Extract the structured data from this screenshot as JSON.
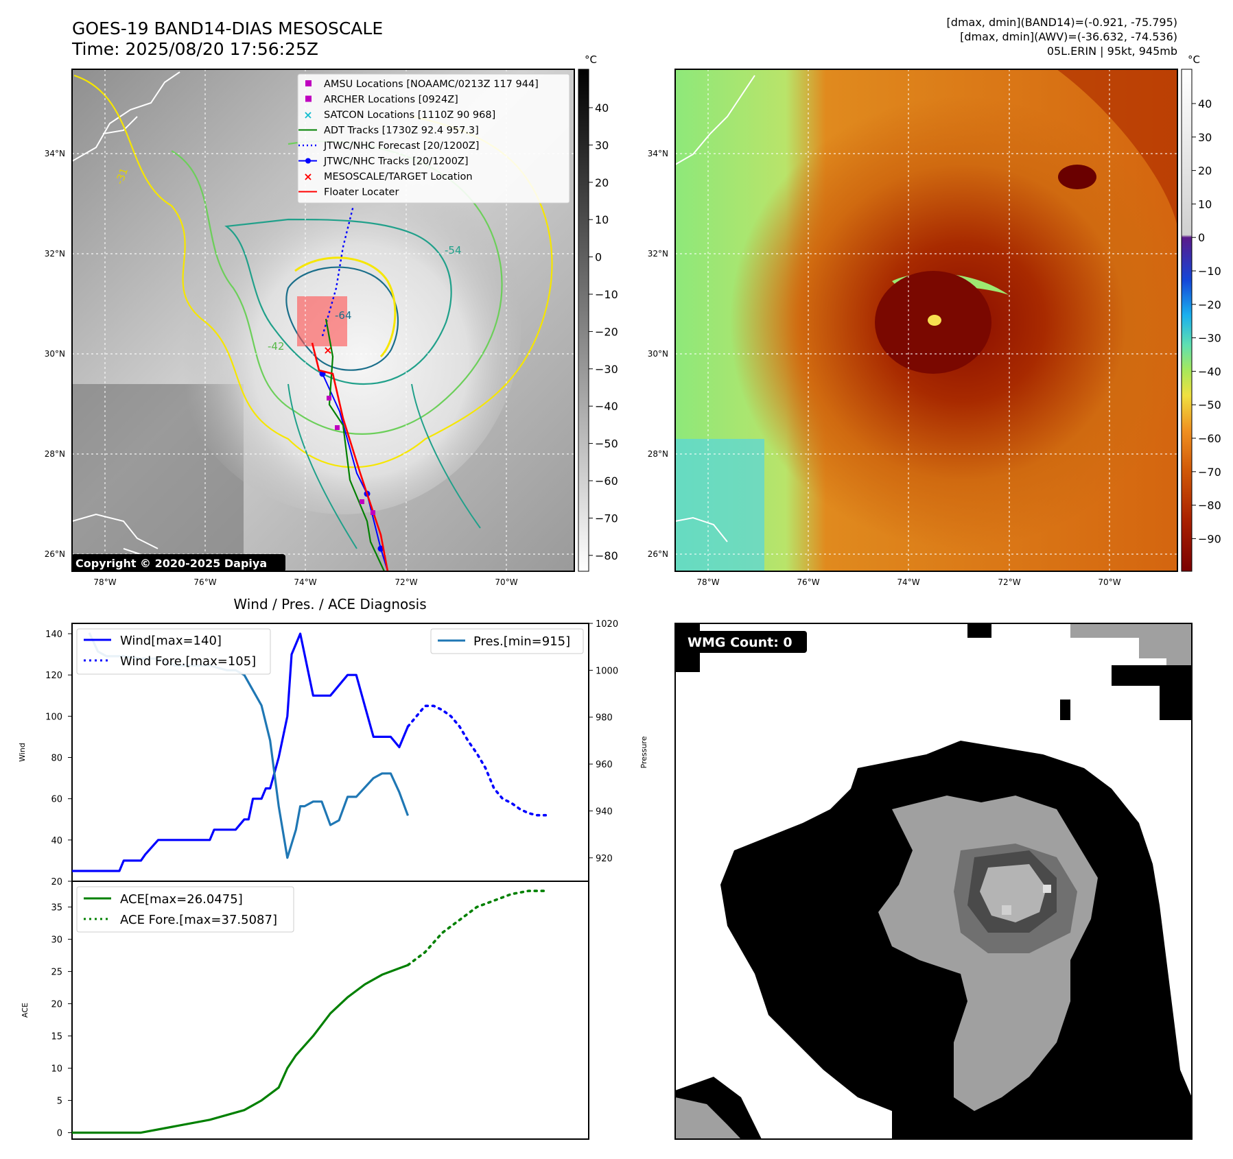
{
  "header": {
    "title_line1": "GOES-19 BAND14-DIAS MESOSCALE",
    "title_line2": "Time: 2025/08/20 17:56:25Z",
    "right_line1": "[dmax, dmin](BAND14)=(-0.921, -75.795)",
    "right_line2": "[dmax, dmin](AWV)=(-36.632, -74.536)",
    "right_line3": "05L.ERIN | 95kt, 945mb"
  },
  "maps": {
    "lat_labels": [
      "34°N",
      "32°N",
      "30°N",
      "28°N",
      "26°N"
    ],
    "lon_labels": [
      "78°W",
      "76°W",
      "74°W",
      "72°W",
      "70°W"
    ],
    "copyright": "Copyright © 2020-2025 Dapiya",
    "colorbar_unit": "°C",
    "left_colorbar_ticks": [
      "40",
      "30",
      "20",
      "10",
      "0",
      "−10",
      "−20",
      "−30",
      "−40",
      "−50",
      "−60",
      "−70",
      "−80"
    ],
    "right_colorbar_ticks": [
      "40",
      "30",
      "20",
      "10",
      "0",
      "−10",
      "−20",
      "−30",
      "−40",
      "−50",
      "−60",
      "−70",
      "−80",
      "−90"
    ],
    "contour_labels": [
      "-31",
      "-42",
      "-54",
      "-64"
    ],
    "legend": [
      {
        "label": "AMSU Locations [NOAAMC/0213Z 117 944]",
        "color": "#bf00bf",
        "marker": "square"
      },
      {
        "label": "ARCHER Locations [0924Z]",
        "color": "#bf00bf",
        "marker": "square"
      },
      {
        "label": "SATCON Locations [1110Z 90 968]",
        "color": "#17becf",
        "marker": "x"
      },
      {
        "label": "ADT Tracks [1730Z 92.4 957.3]",
        "color": "#008000",
        "marker": "line"
      },
      {
        "label": "JTWC/NHC Forecast [20/1200Z]",
        "color": "#0000ff",
        "marker": "dotted"
      },
      {
        "label": "JTWC/NHC Tracks [20/1200Z]",
        "color": "#0000ff",
        "marker": "line-dot"
      },
      {
        "label": "MESOSCALE/TARGET Location",
        "color": "#ff0000",
        "marker": "x"
      },
      {
        "label": "Floater Locater",
        "color": "#ff0000",
        "marker": "line"
      }
    ]
  },
  "wmg": {
    "label": "WMG Count: 0"
  },
  "chart_data": [
    {
      "type": "line",
      "title": "Wind / Pres. / ACE Diagnosis",
      "ylabel": "Wind",
      "ylabel_right": "Pressure",
      "ylim": [
        20,
        145
      ],
      "ylim_right": [
        910,
        1020
      ],
      "y_ticks": [
        20,
        40,
        60,
        80,
        100,
        120,
        140
      ],
      "y_ticks_right": [
        920,
        940,
        960,
        980,
        1000,
        1020
      ],
      "xlim": [
        0,
        60
      ],
      "legend_left": [
        "Wind[max=140]",
        "Wind Fore.[max=105]"
      ],
      "legend_right": [
        "Pres.[min=915]"
      ],
      "series": [
        {
          "name": "Wind[max=140]",
          "color": "#0000ff",
          "style": "solid",
          "x": [
            0,
            2,
            4,
            5.5,
            6,
            8,
            8.5,
            10,
            11,
            12,
            14,
            16,
            16.5,
            18,
            19,
            20,
            20.5,
            21,
            22,
            22.5,
            23,
            24,
            25,
            25.5,
            26,
            26.5,
            27,
            28,
            29,
            30,
            31,
            32,
            33,
            34,
            35,
            35.5,
            36,
            37,
            38,
            38.5,
            39
          ],
          "y": [
            25,
            25,
            25,
            25,
            30,
            30,
            33,
            40,
            40,
            40,
            40,
            40,
            45,
            45,
            45,
            50,
            50,
            60,
            60,
            65,
            65,
            80,
            100,
            130,
            135,
            140,
            130,
            110,
            110,
            110,
            115,
            120,
            120,
            105,
            90,
            90,
            90,
            90,
            85,
            90,
            95
          ]
        },
        {
          "name": "Wind Fore.[max=105]",
          "color": "#0000ff",
          "style": "dotted",
          "x": [
            39,
            40,
            41,
            42,
            43,
            44,
            45,
            46,
            47,
            48,
            49,
            50,
            51,
            52,
            53,
            54,
            55
          ],
          "y": [
            95,
            100,
            105,
            105,
            103,
            100,
            95,
            88,
            82,
            75,
            65,
            60,
            58,
            55,
            53,
            52,
            52
          ]
        },
        {
          "name": "Pres.[min=915]",
          "color": "#1f77b4",
          "style": "solid",
          "x": [
            2,
            3,
            4,
            6,
            8,
            10,
            12,
            14,
            16,
            18,
            19,
            20,
            22,
            23,
            24,
            25,
            26,
            26.5,
            27,
            28,
            29,
            30,
            31,
            32,
            33,
            34,
            35,
            36,
            37,
            38,
            39
          ],
          "y": [
            1016,
            1008,
            1006,
            1006,
            1005,
            1005,
            1002,
            1002,
            1002,
            1000,
            1000,
            998,
            985,
            970,
            942,
            920,
            932,
            942,
            942,
            944,
            944,
            934,
            936,
            946,
            946,
            950,
            954,
            956,
            956,
            948,
            938
          ]
        }
      ]
    },
    {
      "type": "line",
      "ylabel": "ACE",
      "ylim": [
        -1,
        39
      ],
      "y_ticks": [
        0,
        5,
        10,
        15,
        20,
        25,
        30,
        35
      ],
      "xlim": [
        0,
        60
      ],
      "series": [
        {
          "name": "ACE[max=26.0475]",
          "color": "#008000",
          "style": "solid",
          "x": [
            0,
            4,
            8,
            12,
            16,
            20,
            22,
            24,
            25,
            26,
            28,
            30,
            32,
            34,
            36,
            38,
            39
          ],
          "y": [
            0,
            0,
            0,
            1,
            2,
            3.5,
            5,
            7,
            10,
            12,
            15,
            18.5,
            21,
            23,
            24.5,
            25.5,
            26
          ]
        },
        {
          "name": "ACE Fore.[max=37.5087]",
          "color": "#008000",
          "style": "dotted",
          "x": [
            39,
            41,
            43,
            45,
            47,
            49,
            51,
            53,
            55
          ],
          "y": [
            26,
            28,
            31,
            33,
            35,
            36,
            37,
            37.5,
            37.5
          ]
        }
      ]
    }
  ]
}
